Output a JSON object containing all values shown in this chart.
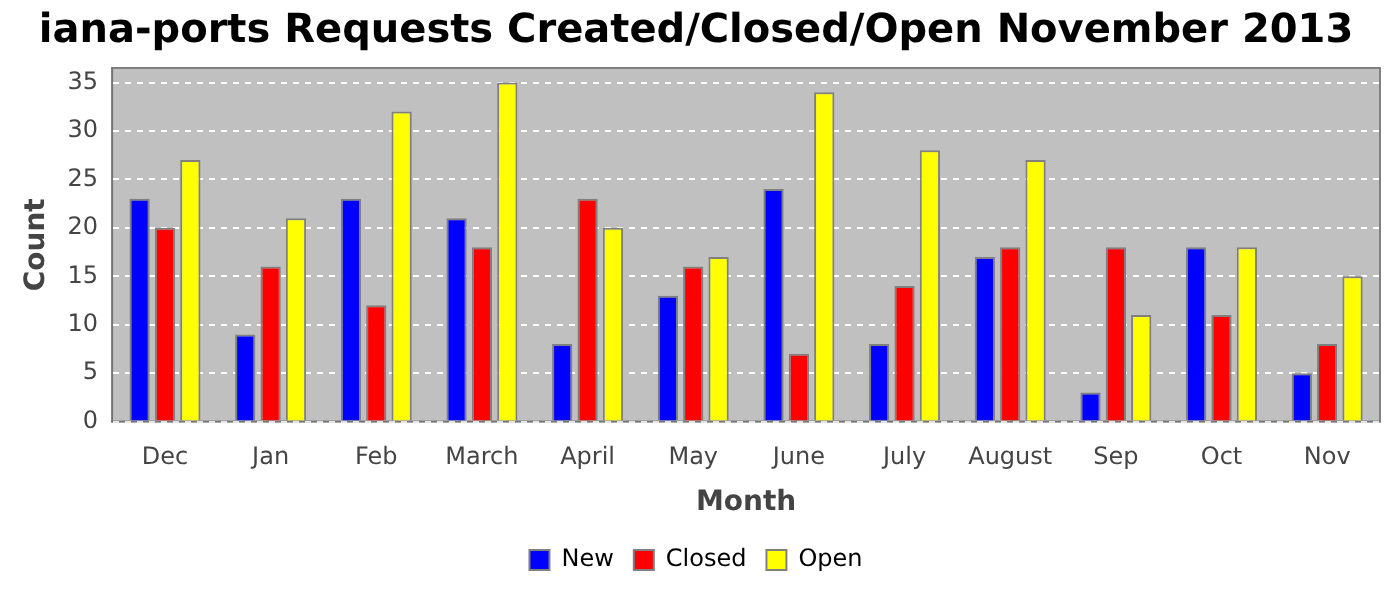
{
  "chart_data": {
    "type": "bar",
    "title": "iana-ports Requests Created/Closed/Open November 2013",
    "xlabel": "Month",
    "ylabel": "Count",
    "categories": [
      "Dec",
      "Jan",
      "Feb",
      "March",
      "April",
      "May",
      "June",
      "July",
      "August",
      "Sep",
      "Oct",
      "Nov"
    ],
    "series": [
      {
        "name": "New",
        "color": "#0000ff",
        "values": [
          23,
          9,
          23,
          21,
          8,
          13,
          24,
          8,
          17,
          3,
          18,
          5
        ]
      },
      {
        "name": "Closed",
        "color": "#ff0000",
        "values": [
          20,
          16,
          12,
          18,
          23,
          16,
          7,
          14,
          18,
          18,
          11,
          8
        ]
      },
      {
        "name": "Open",
        "color": "#ffff00",
        "values": [
          27,
          21,
          32,
          35,
          20,
          17,
          34,
          28,
          27,
          11,
          18,
          15
        ]
      }
    ],
    "ylim": [
      0,
      36.5
    ],
    "yticks": [
      0,
      5,
      10,
      15,
      20,
      25,
      30,
      35
    ],
    "grid": "y",
    "legend": "bottom"
  }
}
